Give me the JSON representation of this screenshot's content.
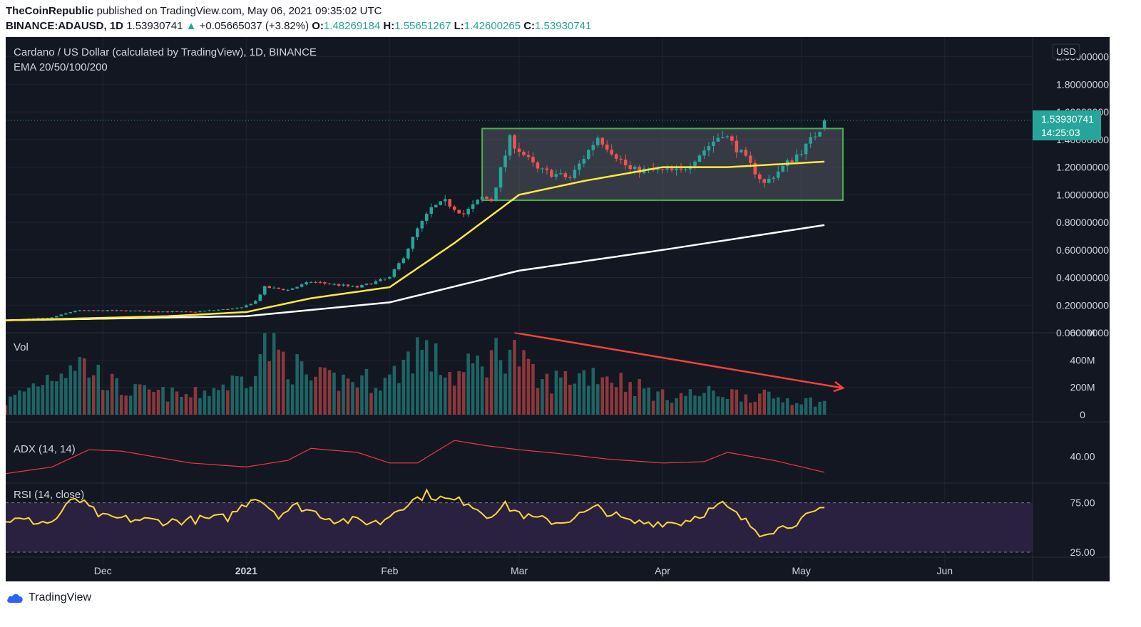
{
  "header": {
    "publisher": "TheCoinRepublic",
    "published_text": "published on TradingView.com, May 06, 2021 09:35:02 UTC",
    "symbol": "BINANCE:ADAUSD, 1D",
    "last": "1.53930741",
    "change": "+0.05665037 (+3.82%)",
    "o_label": "O:",
    "o_value": "1.48269184",
    "h_label": "H:",
    "h_value": "1.55651267",
    "l_label": "L:",
    "l_value": "1.42600265",
    "c_label": "C:",
    "c_value": "1.53930741"
  },
  "footer": {
    "brand": "TradingView"
  },
  "colors": {
    "background": "#131722",
    "up": "#26a69a",
    "down": "#ef5350",
    "ema20": "#ffeb3b",
    "ema200": "#ffffff",
    "box": "#4caf50",
    "trend_arrow": "#f44336",
    "adx": "#f23645",
    "rsi": "#fdd835",
    "rsi_band": "#2a2140"
  },
  "chart_data": [
    {
      "type": "candlestick",
      "title": "Cardano / US Dollar (calculated by TradingView), 1D, BINANCE",
      "indicator_label": "EMA 20/50/100/200",
      "currency_label": "USD",
      "last_price_label": "1.53930741",
      "countdown_label": "14:25:03",
      "y_ticks": [
        "0.00000000",
        "0.20000000",
        "0.40000000",
        "0.60000000",
        "0.80000000",
        "1.00000000",
        "1.20000000",
        "1.40000000",
        "1.60000000",
        "1.80000000",
        "2.00000000"
      ],
      "ylim": [
        0,
        2.05
      ],
      "x_tick_labels": [
        "Dec",
        "2021",
        "Feb",
        "Mar",
        "Apr",
        "May",
        "Jun"
      ],
      "x_tick_dates": [
        "2020-12-01",
        "2021-01-01",
        "2021-02-01",
        "2021-03-01",
        "2021-04-01",
        "2021-05-01",
        "2021-06-01"
      ],
      "x_range": [
        "2020-11-10",
        "2021-06-20"
      ],
      "date_range": [
        "2020-11-10",
        "2021-05-06"
      ],
      "price_anchors": [
        [
          "2020-11-10",
          0.09
        ],
        [
          "2020-11-20",
          0.11
        ],
        [
          "2020-11-25",
          0.16
        ],
        [
          "2020-12-05",
          0.16
        ],
        [
          "2020-12-20",
          0.15
        ],
        [
          "2020-12-31",
          0.18
        ],
        [
          "2021-01-03",
          0.23
        ],
        [
          "2021-01-05",
          0.33
        ],
        [
          "2021-01-10",
          0.31
        ],
        [
          "2021-01-15",
          0.37
        ],
        [
          "2021-01-25",
          0.33
        ],
        [
          "2021-02-01",
          0.4
        ],
        [
          "2021-02-04",
          0.55
        ],
        [
          "2021-02-07",
          0.75
        ],
        [
          "2021-02-10",
          0.9
        ],
        [
          "2021-02-13",
          0.95
        ],
        [
          "2021-02-17",
          0.86
        ],
        [
          "2021-02-21",
          0.98
        ],
        [
          "2021-02-23",
          0.96
        ],
        [
          "2021-02-27",
          1.4
        ],
        [
          "2021-03-05",
          1.18
        ],
        [
          "2021-03-12",
          1.12
        ],
        [
          "2021-03-18",
          1.42
        ],
        [
          "2021-03-25",
          1.18
        ],
        [
          "2021-04-05",
          1.17
        ],
        [
          "2021-04-14",
          1.45
        ],
        [
          "2021-04-18",
          1.3
        ],
        [
          "2021-04-23",
          1.08
        ],
        [
          "2021-04-27",
          1.2
        ],
        [
          "2021-05-02",
          1.35
        ],
        [
          "2021-05-05",
          1.48
        ],
        [
          "2021-05-06",
          1.54
        ]
      ],
      "ema20_anchors": [
        [
          "2020-11-10",
          0.09
        ],
        [
          "2020-12-15",
          0.12
        ],
        [
          "2021-01-01",
          0.15
        ],
        [
          "2021-01-15",
          0.25
        ],
        [
          "2021-02-01",
          0.33
        ],
        [
          "2021-02-15",
          0.65
        ],
        [
          "2021-03-01",
          1.0
        ],
        [
          "2021-03-15",
          1.1
        ],
        [
          "2021-04-01",
          1.2
        ],
        [
          "2021-04-15",
          1.2
        ],
        [
          "2021-05-06",
          1.24
        ]
      ],
      "ema200_anchors": [
        [
          "2020-11-10",
          0.09
        ],
        [
          "2021-01-01",
          0.12
        ],
        [
          "2021-02-01",
          0.22
        ],
        [
          "2021-03-01",
          0.45
        ],
        [
          "2021-04-01",
          0.6
        ],
        [
          "2021-05-06",
          0.78
        ]
      ],
      "range_box": {
        "start": "2021-02-21",
        "end": "2021-05-10",
        "top": 1.48,
        "bottom": 0.96
      }
    },
    {
      "type": "bar",
      "title": "Vol",
      "y_ticks": [
        "0",
        "200M",
        "400M",
        "600M"
      ],
      "ylim": [
        0,
        600
      ],
      "unit": "M",
      "volume_anchors": [
        [
          "2020-11-10",
          100
        ],
        [
          "2020-11-25",
          450
        ],
        [
          "2020-12-05",
          200
        ],
        [
          "2020-12-20",
          150
        ],
        [
          "2021-01-01",
          300
        ],
        [
          "2021-01-05",
          580
        ],
        [
          "2021-01-15",
          280
        ],
        [
          "2021-02-01",
          280
        ],
        [
          "2021-02-07",
          560
        ],
        [
          "2021-02-15",
          300
        ],
        [
          "2021-02-27",
          560
        ],
        [
          "2021-03-05",
          250
        ],
        [
          "2021-03-18",
          350
        ],
        [
          "2021-04-01",
          150
        ],
        [
          "2021-04-14",
          180
        ],
        [
          "2021-05-06",
          100
        ]
      ],
      "trend_arrow": {
        "start": "2021-02-28",
        "end": "2021-05-10",
        "start_value": 600,
        "end_value": 195
      }
    },
    {
      "type": "line",
      "title": "ADX (14, 14)",
      "y_ticks": [
        "40.00"
      ],
      "ylim": [
        22,
        58
      ],
      "adx_anchors": [
        [
          "2020-11-10",
          27
        ],
        [
          "2020-11-20",
          32
        ],
        [
          "2020-11-28",
          45
        ],
        [
          "2020-12-05",
          44
        ],
        [
          "2020-12-20",
          35
        ],
        [
          "2021-01-01",
          32
        ],
        [
          "2021-01-10",
          37
        ],
        [
          "2021-01-15",
          46
        ],
        [
          "2021-01-25",
          43
        ],
        [
          "2021-02-01",
          35
        ],
        [
          "2021-02-07",
          35
        ],
        [
          "2021-02-15",
          52
        ],
        [
          "2021-02-22",
          48
        ],
        [
          "2021-03-01",
          45
        ],
        [
          "2021-03-10",
          42
        ],
        [
          "2021-03-20",
          38
        ],
        [
          "2021-04-01",
          35
        ],
        [
          "2021-04-10",
          36
        ],
        [
          "2021-04-15",
          43
        ],
        [
          "2021-04-25",
          37
        ],
        [
          "2021-05-06",
          28
        ]
      ]
    },
    {
      "type": "line",
      "title": "RSI (14, close)",
      "y_ticks": [
        "75.00",
        "25.00"
      ],
      "ylim": [
        20,
        92
      ],
      "bands": [
        75,
        25
      ],
      "rsi_anchors": [
        [
          "2020-11-10",
          58
        ],
        [
          "2020-11-20",
          55
        ],
        [
          "2020-11-25",
          80
        ],
        [
          "2020-12-01",
          60
        ],
        [
          "2020-12-15",
          56
        ],
        [
          "2020-12-28",
          60
        ],
        [
          "2021-01-03",
          82
        ],
        [
          "2021-01-08",
          63
        ],
        [
          "2021-01-12",
          72
        ],
        [
          "2021-01-20",
          58
        ],
        [
          "2021-01-30",
          55
        ],
        [
          "2021-02-03",
          70
        ],
        [
          "2021-02-09",
          84
        ],
        [
          "2021-02-13",
          78
        ],
        [
          "2021-02-18",
          76
        ],
        [
          "2021-02-22",
          62
        ],
        [
          "2021-02-26",
          72
        ],
        [
          "2021-03-03",
          60
        ],
        [
          "2021-03-10",
          55
        ],
        [
          "2021-03-18",
          70
        ],
        [
          "2021-03-25",
          55
        ],
        [
          "2021-04-05",
          55
        ],
        [
          "2021-04-14",
          73
        ],
        [
          "2021-04-22",
          45
        ],
        [
          "2021-04-27",
          50
        ],
        [
          "2021-05-02",
          60
        ],
        [
          "2021-05-06",
          68
        ]
      ]
    }
  ]
}
